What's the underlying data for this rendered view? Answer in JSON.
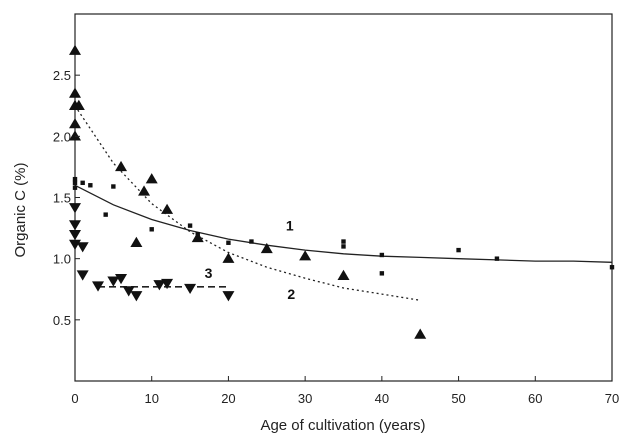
{
  "chart_data": {
    "type": "scatter",
    "xlabel": "Age of cultivation (years)",
    "ylabel": "Organic C (%)",
    "xlim": [
      0,
      70
    ],
    "ylim": [
      0,
      3.0
    ],
    "xticks": [
      0,
      10,
      20,
      30,
      40,
      50,
      60,
      70
    ],
    "yticks": [
      0.5,
      1.0,
      1.5,
      2.0,
      2.5
    ],
    "grid": false,
    "series": [
      {
        "name": "1",
        "marker": "square",
        "fit": "solid",
        "points": [
          [
            0,
            1.65
          ],
          [
            0,
            1.62
          ],
          [
            0,
            1.58
          ],
          [
            1,
            1.62
          ],
          [
            2,
            1.6
          ],
          [
            4,
            1.36
          ],
          [
            5,
            1.59
          ],
          [
            10,
            1.24
          ],
          [
            15,
            1.27
          ],
          [
            16,
            1.2
          ],
          [
            20,
            1.13
          ],
          [
            23,
            1.14
          ],
          [
            35,
            1.14
          ],
          [
            35,
            1.1
          ],
          [
            40,
            1.03
          ],
          [
            40,
            0.88
          ],
          [
            50,
            1.07
          ],
          [
            55,
            1.0
          ],
          [
            70,
            0.93
          ]
        ],
        "curve": [
          [
            0,
            1.6
          ],
          [
            5,
            1.44
          ],
          [
            10,
            1.32
          ],
          [
            15,
            1.23
          ],
          [
            20,
            1.16
          ],
          [
            25,
            1.11
          ],
          [
            30,
            1.07
          ],
          [
            35,
            1.04
          ],
          [
            40,
            1.02
          ],
          [
            45,
            1.01
          ],
          [
            50,
            1.0
          ],
          [
            55,
            0.99
          ],
          [
            60,
            0.98
          ],
          [
            65,
            0.98
          ],
          [
            70,
            0.97
          ]
        ]
      },
      {
        "name": "2",
        "marker": "triangle-up",
        "fit": "dotted",
        "points": [
          [
            0,
            2.7
          ],
          [
            0,
            2.35
          ],
          [
            0,
            2.25
          ],
          [
            0,
            2.1
          ],
          [
            0,
            2.0
          ],
          [
            0.5,
            2.25
          ],
          [
            6,
            1.75
          ],
          [
            8,
            1.13
          ],
          [
            9,
            1.55
          ],
          [
            10,
            1.65
          ],
          [
            12,
            1.4
          ],
          [
            16,
            1.17
          ],
          [
            20,
            1.0
          ],
          [
            25,
            1.08
          ],
          [
            30,
            1.02
          ],
          [
            35,
            0.86
          ],
          [
            45,
            0.38
          ]
        ],
        "curve": [
          [
            0,
            2.25
          ],
          [
            5,
            1.78
          ],
          [
            10,
            1.45
          ],
          [
            15,
            1.22
          ],
          [
            20,
            1.05
          ],
          [
            25,
            0.93
          ],
          [
            30,
            0.84
          ],
          [
            35,
            0.76
          ],
          [
            40,
            0.71
          ],
          [
            45,
            0.66
          ]
        ]
      },
      {
        "name": "3",
        "marker": "triangle-down",
        "fit": "dashed",
        "points": [
          [
            0,
            1.42
          ],
          [
            0,
            1.28
          ],
          [
            0,
            1.2
          ],
          [
            0,
            1.12
          ],
          [
            1,
            1.1
          ],
          [
            1,
            0.87
          ],
          [
            3,
            0.78
          ],
          [
            5,
            0.82
          ],
          [
            6,
            0.84
          ],
          [
            7,
            0.74
          ],
          [
            8,
            0.7
          ],
          [
            11,
            0.79
          ],
          [
            12,
            0.8
          ],
          [
            15,
            0.76
          ],
          [
            20,
            0.7
          ]
        ],
        "curve": [
          [
            3,
            0.77
          ],
          [
            20,
            0.77
          ]
        ]
      }
    ]
  }
}
